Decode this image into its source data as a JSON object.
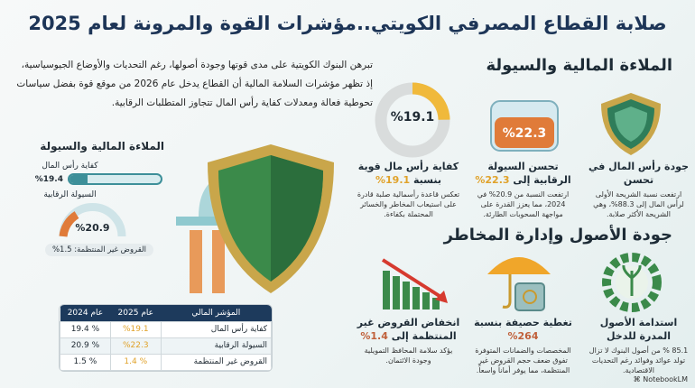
{
  "title": "صلابة القطاع المصرفي الكويتي..مؤشرات القوة والمرونة لعام 2025",
  "intro": "تبرهن البنوك الكويتية على مدى قوتها وجودة أصولها، رغم التحديات والأوضاع الجيوسياسية، إذ تظهر مؤشرات السلامة المالية أن القطاع يدخل عام 2026 من موقع قوة بفضل سياسات تحوطية فعالة ومعدلات كفاية رأس المال تتجاوز المتطلبات الرقابية.",
  "section1": {
    "heading": "الملاءة المالية والسيولة",
    "cards": [
      {
        "icon": "shield-icon",
        "title": "جودة رأس المال في تحسن",
        "text": "ارتفعت نسبة الشريحة الأولى لرأس المال إلى 88.3%، وهي الشريحة الأكثر صلابة."
      },
      {
        "icon": "beaker-icon",
        "badge": "%22.3",
        "title": "تحسن السيولة الرقابية إلى",
        "value": "22.3%",
        "text": "ارتفعت النسبة من 20.9% في 2024، مما يعزز القدرة على مواجهة السحوبات الطارئة."
      },
      {
        "icon": "donut-icon",
        "badge": "%19.1",
        "progress": 19.1,
        "title": "كفاية رأس مال قوية بنسبة",
        "value": "19.1%",
        "text": "تعكس قاعدة رأسمالية صلبة قادرة على استيعاب المخاطر والخسائر المحتملة بكفاءة."
      }
    ]
  },
  "section2": {
    "heading": "جودة الأصول وإدارة المخاطر",
    "cards": [
      {
        "icon": "gear-plant-icon",
        "title": "استدامة الأصول المدرة للدخل",
        "text": "85.1 % من أصول البنوك لا تزال تولد عوائد وفوائد رغم التحديات الاقتصادية."
      },
      {
        "icon": "umbrella-safe-icon",
        "title": "تغطية حصيفة بنسبة",
        "value": "264%",
        "text": "المخصصات والضمانات المتوفرة تفوق ضعف حجم القروض غير المنتظمة، مما يوفر أماناً واسعاً."
      },
      {
        "icon": "declining-chart-icon",
        "title": "انخفاض القروض غير المنتظمة إلى",
        "value": "1.4%",
        "text": "يؤكد سلامة المحافظ التمويلية وجودة الائتمان."
      }
    ]
  },
  "mini": {
    "heading": "الملاءة المالية والسيولة",
    "capital_label": "كفاية رأس المال",
    "capital_value": "%19.4",
    "capital_fill": 19.4,
    "liquidity_label": "السيولة الرقابية",
    "liquidity_value": "%20.9",
    "npl": "القروض غير المنتظمة: 1.5%"
  },
  "table": {
    "headers": [
      "المؤشر المالي",
      "عام 2025",
      "عام 2024"
    ],
    "rows": [
      [
        "كفاية رأس المال",
        "%19.1",
        "% 19.4"
      ],
      [
        "السيولة الرقابية",
        "%22.3",
        "% 20.9"
      ],
      [
        "القروض غير المنتظمة",
        "% 1.4",
        "% 1.5"
      ]
    ]
  },
  "brand": "NotebookLM",
  "colors": {
    "navy": "#1d3557",
    "gold": "#e0a22a",
    "teal": "#3d8f99",
    "orange": "#e07b39",
    "green": "#3b8a4a"
  }
}
